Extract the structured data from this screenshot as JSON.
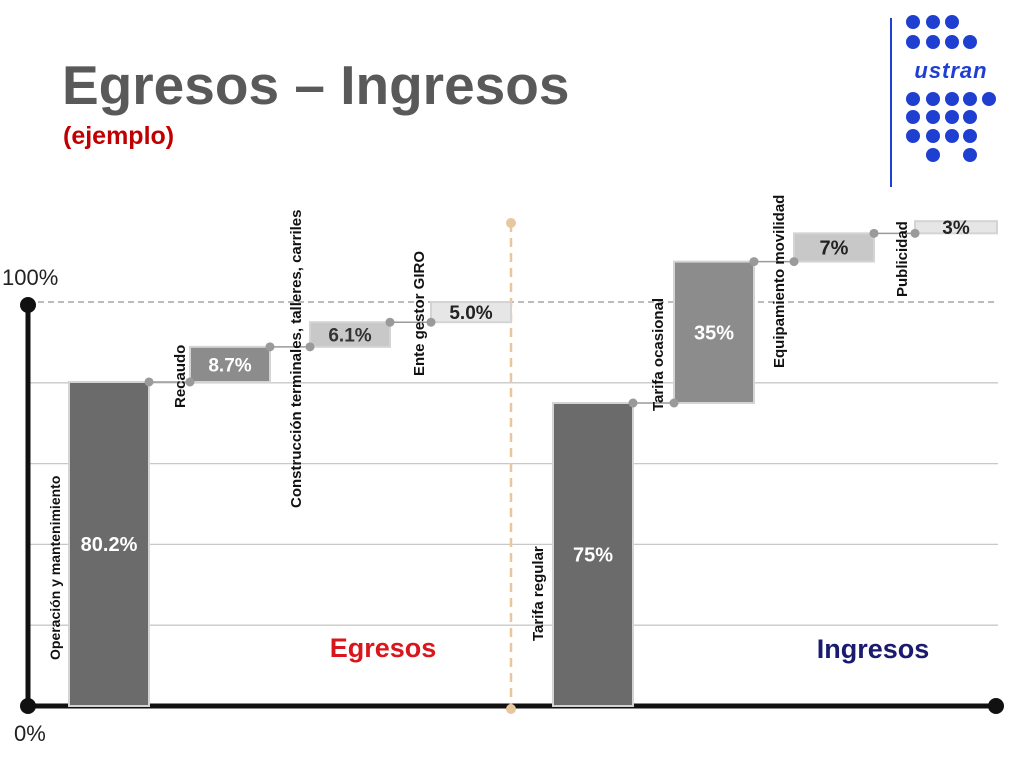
{
  "header": {
    "title": "Egresos – Ingresos",
    "subtitle": "(ejemplo)"
  },
  "logo": {
    "text": "ustran",
    "color": "#1f3fd1"
  },
  "colors": {
    "dark_bar": "#6b6b6b",
    "mid_bar": "#8c8c8c",
    "light_bar": "#c8c8c8",
    "lighter_bar": "#e6e6e6",
    "egresos_label": "#d9161c",
    "ingresos_label": "#1a1a6e",
    "divider": "#e8c7a0"
  },
  "chart_data": {
    "type": "bar",
    "subtype": "waterfall",
    "ylabel_top": "100%",
    "ylabel_bottom": "0%",
    "ylim": [
      0,
      100
    ],
    "reference_line": 100,
    "groups": [
      {
        "name": "Egresos",
        "items": [
          {
            "label": "Operación y mantenimiento",
            "value": 80.2,
            "value_label": "80.2%"
          },
          {
            "label": "Recaudo",
            "value": 8.7,
            "value_label": "8.7%"
          },
          {
            "label": "Construcción terminales, talleres, carriles",
            "value": 6.1,
            "value_label": "6.1%"
          },
          {
            "label": "Ente gestor GIRO",
            "value": 5.0,
            "value_label": "5.0%"
          }
        ]
      },
      {
        "name": "Ingresos",
        "items": [
          {
            "label": "Tarifa regular",
            "value": 75,
            "value_label": "75%"
          },
          {
            "label": "Tarifa ocasional",
            "value": 35,
            "value_label": "35%"
          },
          {
            "label": "Equipamiento movilidad",
            "value": 7,
            "value_label": "7%"
          },
          {
            "label": "Publicidad",
            "value": 3,
            "value_label": "3%"
          }
        ]
      }
    ]
  }
}
